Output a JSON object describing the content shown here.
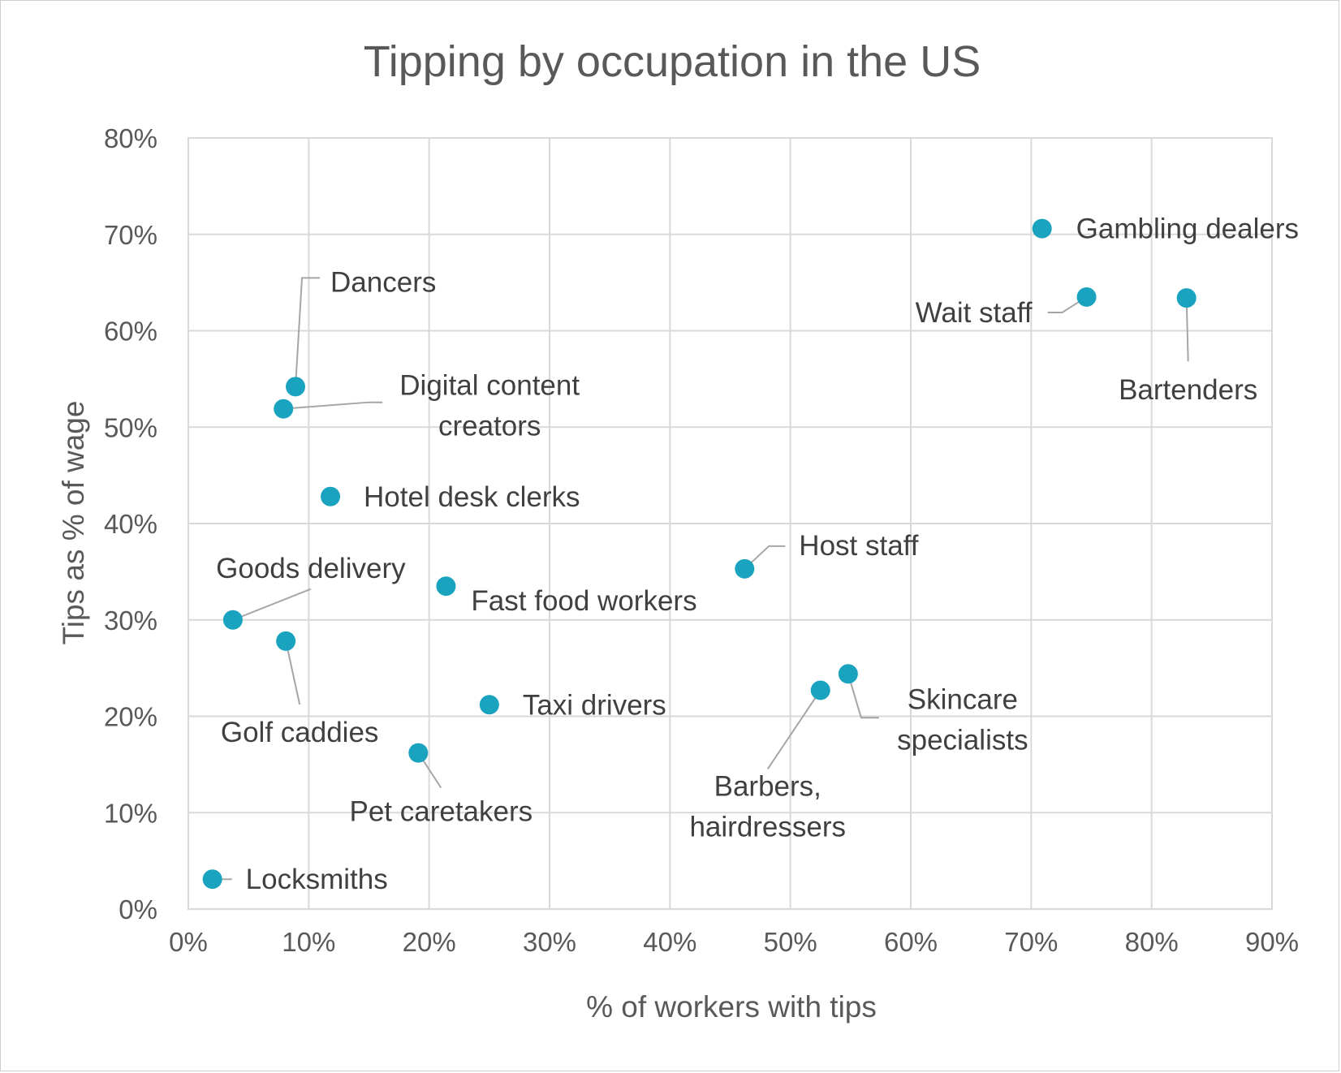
{
  "chart_data": {
    "type": "scatter",
    "title": "Tipping by occupation in the US",
    "xlabel": "% of workers with tips",
    "ylabel": "Tips as % of wage",
    "xlim": [
      0,
      90
    ],
    "ylim": [
      0,
      80
    ],
    "x_ticks": [
      "0%",
      "10%",
      "20%",
      "30%",
      "40%",
      "50%",
      "60%",
      "70%",
      "80%",
      "90%"
    ],
    "y_ticks": [
      "0%",
      "10%",
      "20%",
      "30%",
      "40%",
      "50%",
      "60%",
      "70%",
      "80%"
    ],
    "grid": true,
    "point_color": "#1aa3bf",
    "points": [
      {
        "label": "Dancers",
        "x": 8.9,
        "y": 54.2
      },
      {
        "label": "Digital content creators",
        "x": 7.9,
        "y": 51.9
      },
      {
        "label": "Hotel desk clerks",
        "x": 11.8,
        "y": 42.8
      },
      {
        "label": "Goods delivery",
        "x": 3.7,
        "y": 30.0
      },
      {
        "label": "Golf caddies",
        "x": 8.1,
        "y": 27.8
      },
      {
        "label": "Fast food workers",
        "x": 21.4,
        "y": 33.5
      },
      {
        "label": "Taxi drivers",
        "x": 25.0,
        "y": 21.2
      },
      {
        "label": "Pet caretakers",
        "x": 19.1,
        "y": 16.2
      },
      {
        "label": "Locksmiths",
        "x": 2.0,
        "y": 3.1
      },
      {
        "label": "Host staff",
        "x": 46.2,
        "y": 35.3
      },
      {
        "label": "Barbers, hairdressers",
        "x": 52.5,
        "y": 22.7
      },
      {
        "label": "Skincare specialists",
        "x": 54.8,
        "y": 24.4
      },
      {
        "label": "Gambling dealers",
        "x": 70.9,
        "y": 70.6
      },
      {
        "label": "Wait staff",
        "x": 74.6,
        "y": 63.5
      },
      {
        "label": "Bartenders",
        "x": 82.9,
        "y": 63.4
      }
    ]
  }
}
